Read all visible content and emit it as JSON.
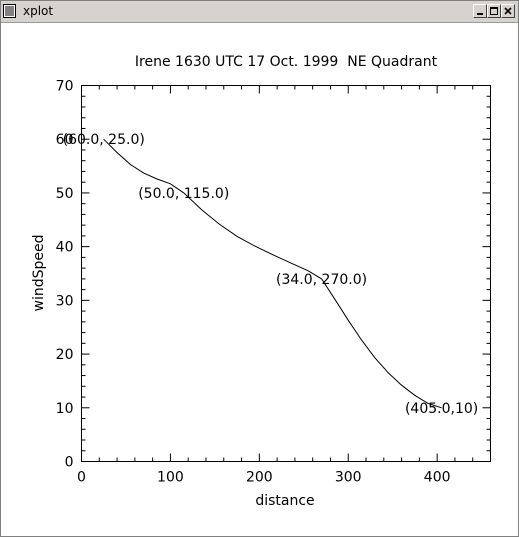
{
  "window": {
    "title": "xplot"
  },
  "icons": {
    "menu": "window-menu-icon",
    "minimize": "minimize-icon",
    "maximize": "maximize-icon",
    "close": "close-icon"
  },
  "chart_data": {
    "type": "line",
    "title": "Irene 1630 UTC 17 Oct. 1999  NE Quadrant",
    "xlabel": "distance",
    "ylabel": "windSpeed",
    "xlim": [
      0,
      460
    ],
    "ylim": [
      0,
      70
    ],
    "x_ticks": [
      0,
      100,
      200,
      300,
      400
    ],
    "y_ticks": [
      0,
      10,
      20,
      30,
      40,
      50,
      60,
      70
    ],
    "grid": false,
    "series": [
      {
        "x": [
          25,
          40,
          55,
          70,
          85,
          100,
          115,
          135,
          155,
          175,
          195,
          215,
          235,
          255,
          270,
          285,
          300,
          315,
          330,
          345,
          360,
          375,
          390,
          405
        ],
        "y": [
          60,
          57.5,
          55.3,
          53.7,
          52.6,
          51.7,
          50,
          46.9,
          44.2,
          41.9,
          40.1,
          38.5,
          37,
          35.5,
          34,
          30.2,
          26.3,
          22.6,
          19.3,
          16.5,
          14.2,
          12.3,
          10.8,
          10
        ]
      }
    ],
    "annotations": [
      {
        "text": "(60.0, 25.0)",
        "x": 25,
        "y": 60
      },
      {
        "text": "(50.0, 115.0)",
        "x": 115,
        "y": 50
      },
      {
        "text": "(34.0, 270.0)",
        "x": 270,
        "y": 34
      },
      {
        "text": "(405.0,10)",
        "x": 405,
        "y": 10
      }
    ]
  }
}
